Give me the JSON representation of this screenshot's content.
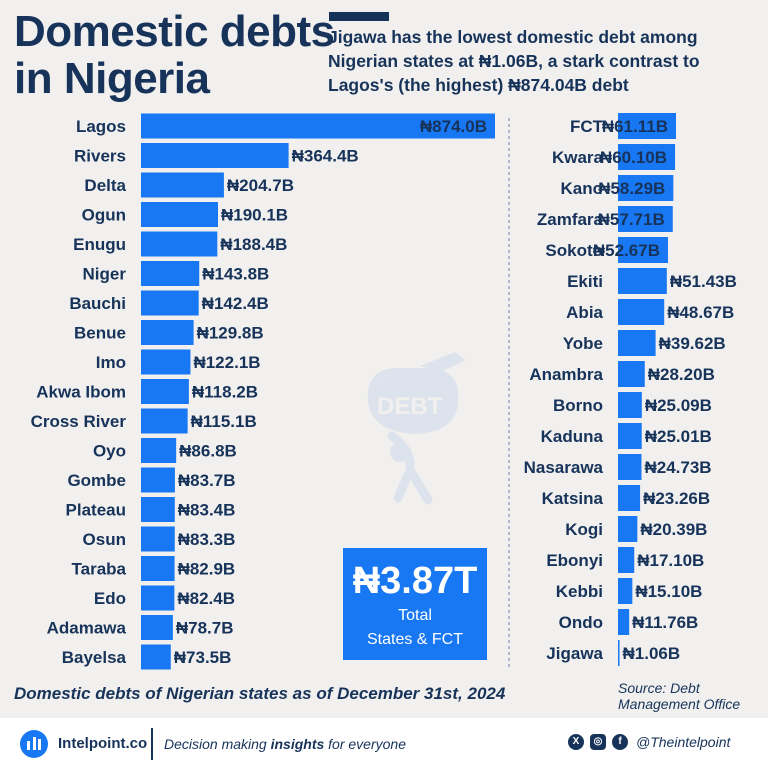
{
  "header": {
    "title_line1": "Domestic debts",
    "title_line2": "in Nigeria",
    "subtitle": "Jigawa has the lowest domestic debt among Nigerian states at ₦1.06B, a stark contrast to Lagos's (the highest) ₦874.04B debt"
  },
  "colors": {
    "bar": "#1877f2",
    "text": "#17335a",
    "background": "#f1f0ee"
  },
  "chart_data": [
    {
      "type": "bar",
      "orientation": "horizontal",
      "unit": "₦ billion",
      "categories": [
        "Lagos",
        "Rivers",
        "Delta",
        "Ogun",
        "Enugu",
        "Niger",
        "Bauchi",
        "Benue",
        "Imo",
        "Akwa Ibom",
        "Cross River",
        "Oyo",
        "Gombe",
        "Plateau",
        "Osun",
        "Taraba",
        "Edo",
        "Adamawa",
        "Bayelsa"
      ],
      "values": [
        874.0,
        364.4,
        204.7,
        190.1,
        188.4,
        143.8,
        142.4,
        129.8,
        122.1,
        118.2,
        115.1,
        86.8,
        83.7,
        83.4,
        83.3,
        82.9,
        82.4,
        78.7,
        73.5
      ],
      "labels": [
        "₦874.0B",
        "₦364.4B",
        "₦204.7B",
        "₦190.1B",
        "₦188.4B",
        "₦143.8B",
        "₦142.4B",
        "₦129.8B",
        "₦122.1B",
        "₦118.2B",
        "₦115.1B",
        "₦86.8B",
        "₦83.7B",
        "₦83.4B",
        "₦83.3B",
        "₦82.9B",
        "₦82.4B",
        "₦78.7B",
        "₦73.5B"
      ],
      "xlim": [
        0,
        874.0
      ]
    },
    {
      "type": "bar",
      "orientation": "horizontal",
      "unit": "₦ billion",
      "categories": [
        "FCT",
        "Kwara",
        "Kano",
        "Zamfara",
        "Sokoto",
        "Ekiti",
        "Abia",
        "Yobe",
        "Anambra",
        "Borno",
        "Kaduna",
        "Nasarawa",
        "Katsina",
        "Kogi",
        "Ebonyi",
        "Kebbi",
        "Ondo",
        "Jigawa"
      ],
      "values": [
        61.11,
        60.1,
        58.29,
        57.71,
        52.67,
        51.43,
        48.67,
        39.62,
        28.2,
        25.09,
        25.01,
        24.73,
        23.26,
        20.39,
        17.1,
        15.1,
        11.76,
        1.06
      ],
      "labels": [
        "₦61.11B",
        "₦60.10B",
        "₦58.29B",
        "₦57.71B",
        "₦52.67B",
        "₦51.43B",
        "₦48.67B",
        "₦39.62B",
        "₦28.20B",
        "₦25.09B",
        "₦25.01B",
        "₦24.73B",
        "₦23.26B",
        "₦20.39B",
        "₦17.10B",
        "₦15.10B",
        "₦11.76B",
        "₦1.06B"
      ],
      "xlim": [
        0,
        61.11
      ]
    }
  ],
  "total": {
    "value": "₦3.87T",
    "line1": "Total",
    "line2": "States & FCT"
  },
  "note": "Domestic debts of Nigerian states as of December 31st, 2024",
  "source": {
    "line1": "Source: Debt",
    "line2": "Management Office"
  },
  "footer": {
    "brand": "Intelpoint.co",
    "tagline_pre": "Decision making ",
    "tagline_bold": "insights",
    "tagline_post": " for everyone",
    "handle": "@Theintelpoint",
    "icons": [
      "x-icon",
      "instagram-icon",
      "facebook-icon"
    ]
  }
}
